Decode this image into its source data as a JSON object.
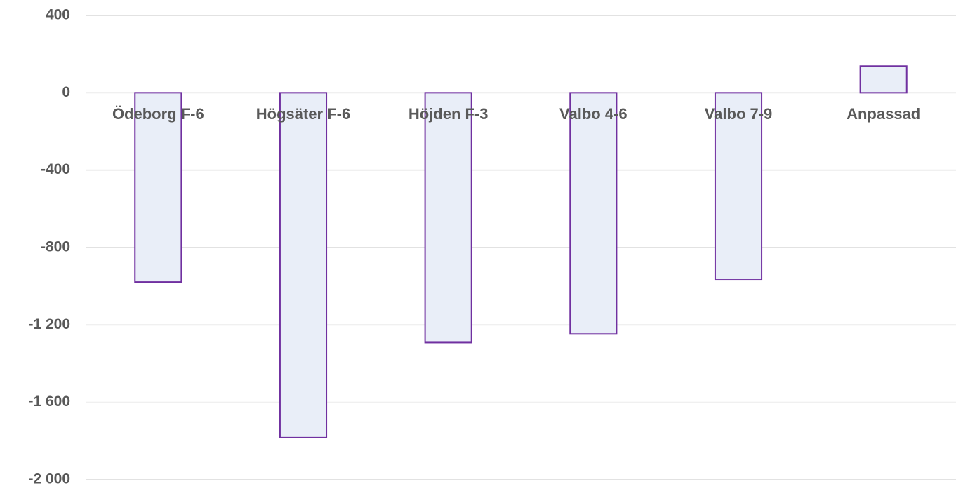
{
  "chart_data": {
    "type": "bar",
    "categories": [
      "Ödeborg F-6",
      "Högsäter F-6",
      "Höjden F-3",
      "Valbo 4-6",
      "Valbo 7-9",
      "Anpassad"
    ],
    "values": [
      -978,
      -1782,
      -1291,
      -1247,
      -967,
      138
    ],
    "color": "#e9eef8",
    "edge_color": "#7030a0",
    "ylim": [
      -2000,
      400
    ],
    "yticks": [
      400,
      0,
      -400,
      -800,
      {
        "value": -1200,
        "label": "-1 200"
      },
      {
        "value": -1600,
        "label": "-1 600"
      },
      {
        "value": -2000,
        "label": "-2 000"
      }
    ],
    "grid": true
  }
}
